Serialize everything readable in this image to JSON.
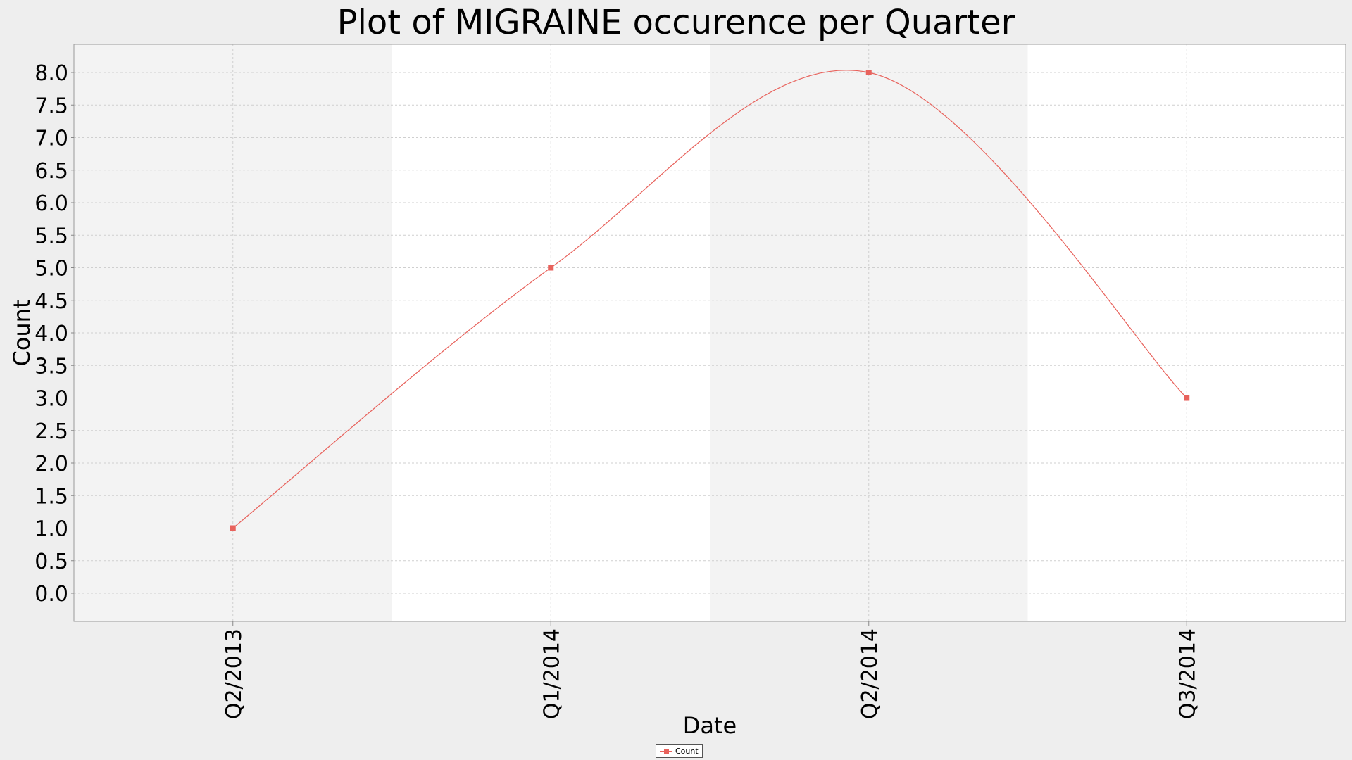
{
  "chart_data": {
    "type": "line",
    "title": "Plot of MIGRAINE occurence per Quarter",
    "xlabel": "Date",
    "ylabel": "Count",
    "categories": [
      "Q2/2013",
      "Q1/2014",
      "Q2/2014",
      "Q3/2014"
    ],
    "series": [
      {
        "name": "Count",
        "values": [
          1.0,
          5.0,
          8.0,
          3.0
        ],
        "color": "#e8625c"
      }
    ],
    "ylim": [
      0,
      8
    ],
    "yticks": [
      "0.0",
      "0.5",
      "1.0",
      "1.5",
      "2.0",
      "2.5",
      "3.0",
      "3.5",
      "4.0",
      "4.5",
      "5.0",
      "5.5",
      "6.0",
      "6.5",
      "7.0",
      "7.5",
      "8.0"
    ],
    "grid": true,
    "legend_position": "bottom",
    "band_colors": [
      "#f3f3f3",
      "#ffffff"
    ]
  }
}
